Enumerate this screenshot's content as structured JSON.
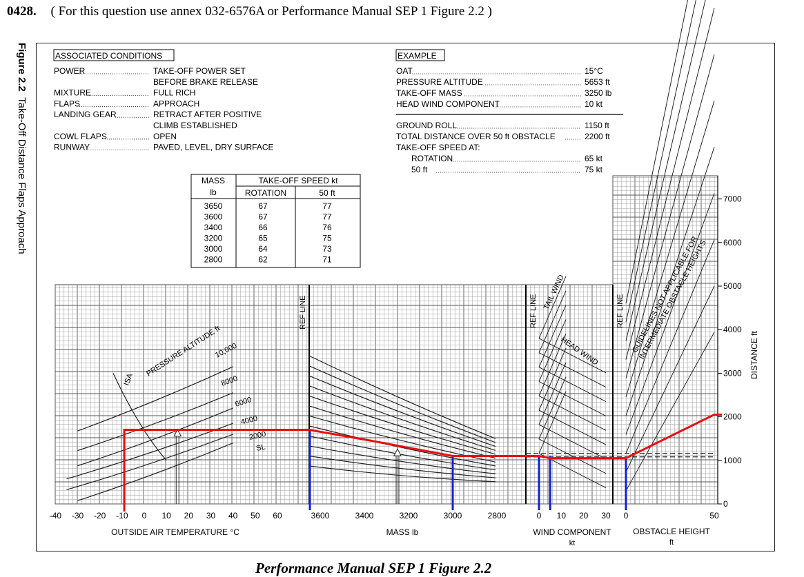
{
  "question": {
    "number": "0428.",
    "text": "( For this question use annex 032-6576A or Performance Manual SEP 1 Figure 2.2 )"
  },
  "figure": {
    "label": "Figure 2.2",
    "title": "Take-Off Distance Flaps Approach"
  },
  "caption": "Performance Manual SEP 1 Figure 2.2",
  "associated_conditions": {
    "heading": "ASSOCIATED CONDITIONS",
    "rows": [
      {
        "label": "POWER",
        "value": "TAKE-OFF POWER SET"
      },
      {
        "label": "",
        "value": "BEFORE BRAKE RELEASE"
      },
      {
        "label": "MIXTURE",
        "value": "FULL RICH"
      },
      {
        "label": "FLAPS",
        "value": "APPROACH"
      },
      {
        "label": "LANDING GEAR",
        "value": "RETRACT AFTER POSITIVE"
      },
      {
        "label": "",
        "value": "CLIMB ESTABLISHED"
      },
      {
        "label": "COWL FLAPS",
        "value": "OPEN"
      },
      {
        "label": "RUNWAY",
        "value": "PAVED, LEVEL, DRY SURFACE"
      }
    ]
  },
  "example": {
    "heading": "EXAMPLE",
    "given": [
      {
        "label": "OAT",
        "value": "15°C"
      },
      {
        "label": "PRESSURE ALTITUDE",
        "value": "5653 ft"
      },
      {
        "label": "TAKE-OFF MASS",
        "value": "3250 lb"
      },
      {
        "label": "HEAD WIND COMPONENT",
        "value": "10 kt"
      }
    ],
    "results": [
      {
        "label": "GROUND ROLL",
        "value": "1150 ft"
      },
      {
        "label": "TOTAL DISTANCE OVER 50 ft OBSTACLE",
        "value": "2200 ft"
      },
      {
        "label": "TAKE-OFF SPEED AT:",
        "value": ""
      },
      {
        "label": "ROTATION",
        "value": "65 kt"
      },
      {
        "label": "50 ft",
        "value": "75 kt"
      }
    ]
  },
  "speed_table": {
    "col_mass": "MASS",
    "col_mass_unit": "lb",
    "col_speed": "TAKE-OFF SPEED kt",
    "col_rotation": "ROTATION",
    "col_50ft": "50 ft",
    "rows": [
      [
        "3650",
        "67",
        "77"
      ],
      [
        "3600",
        "67",
        "77"
      ],
      [
        "3400",
        "66",
        "76"
      ],
      [
        "3200",
        "65",
        "75"
      ],
      [
        "3000",
        "64",
        "73"
      ],
      [
        "2800",
        "62",
        "71"
      ]
    ]
  },
  "chart_data": {
    "type": "line",
    "panels": [
      {
        "name": "oat",
        "xlabel": "OUTSIDE AIR TEMPERATURE °C",
        "ticks": [
          "-40",
          "-30",
          "-20",
          "-10",
          "0",
          "10",
          "20",
          "30",
          "40",
          "50",
          "60"
        ],
        "xlim": [
          -40,
          60
        ]
      },
      {
        "name": "mass",
        "xlabel": "MASS lb",
        "ticks": [
          "3600",
          "3400",
          "3200",
          "3000",
          "2800"
        ],
        "xlim": [
          3650,
          2750
        ]
      },
      {
        "name": "wind",
        "xlabel": "WIND COMPONENT",
        "xlabel_unit": "kt",
        "ticks": [
          "0",
          "10",
          "20",
          "30"
        ],
        "xlim": [
          0,
          30
        ]
      },
      {
        "name": "obstacle",
        "xlabel": "OBSTACLE HEIGHT",
        "xlabel_unit": "ft",
        "ticks": [
          "0",
          "50"
        ],
        "xlim": [
          0,
          50
        ]
      }
    ],
    "ylabel": "DISTANCE ft",
    "y_ticks": [
      "0",
      "1000",
      "2000",
      "3000",
      "4000",
      "5000",
      "6000",
      "7000"
    ],
    "ylim": [
      0,
      7500
    ],
    "grid": true,
    "annotations": {
      "pressure_altitude": "PRESSURE ALTITUDE ft",
      "isa": "ISA",
      "altitudes": [
        "10,000",
        "8000",
        "6000",
        "4000",
        "2000",
        "SL"
      ],
      "ref_line": "REF LINE",
      "tail_wind": "TAIL WIND",
      "head_wind": "HEAD WIND",
      "guidelines": [
        "GUIDELINES NOT APPLICABLE FOR",
        "INTERMEDIATE OBSTACLE HEIGHTS"
      ]
    },
    "solution_path": {
      "color": "#e41010",
      "oat_start": -9,
      "entry_distance": 1700,
      "mass_exit_mass": 3000,
      "mass_exit_distance": 1100,
      "wind_exit_distance": 1050,
      "final_distance": 2050
    },
    "marker_lines": {
      "color": "#1020d0",
      "mass": [
        3650,
        3000
      ],
      "wind": [
        0,
        5
      ],
      "obstacle": [
        0
      ]
    }
  },
  "colors": {
    "red": "#e41010",
    "blue": "#1020d0",
    "grid": "#888888"
  }
}
